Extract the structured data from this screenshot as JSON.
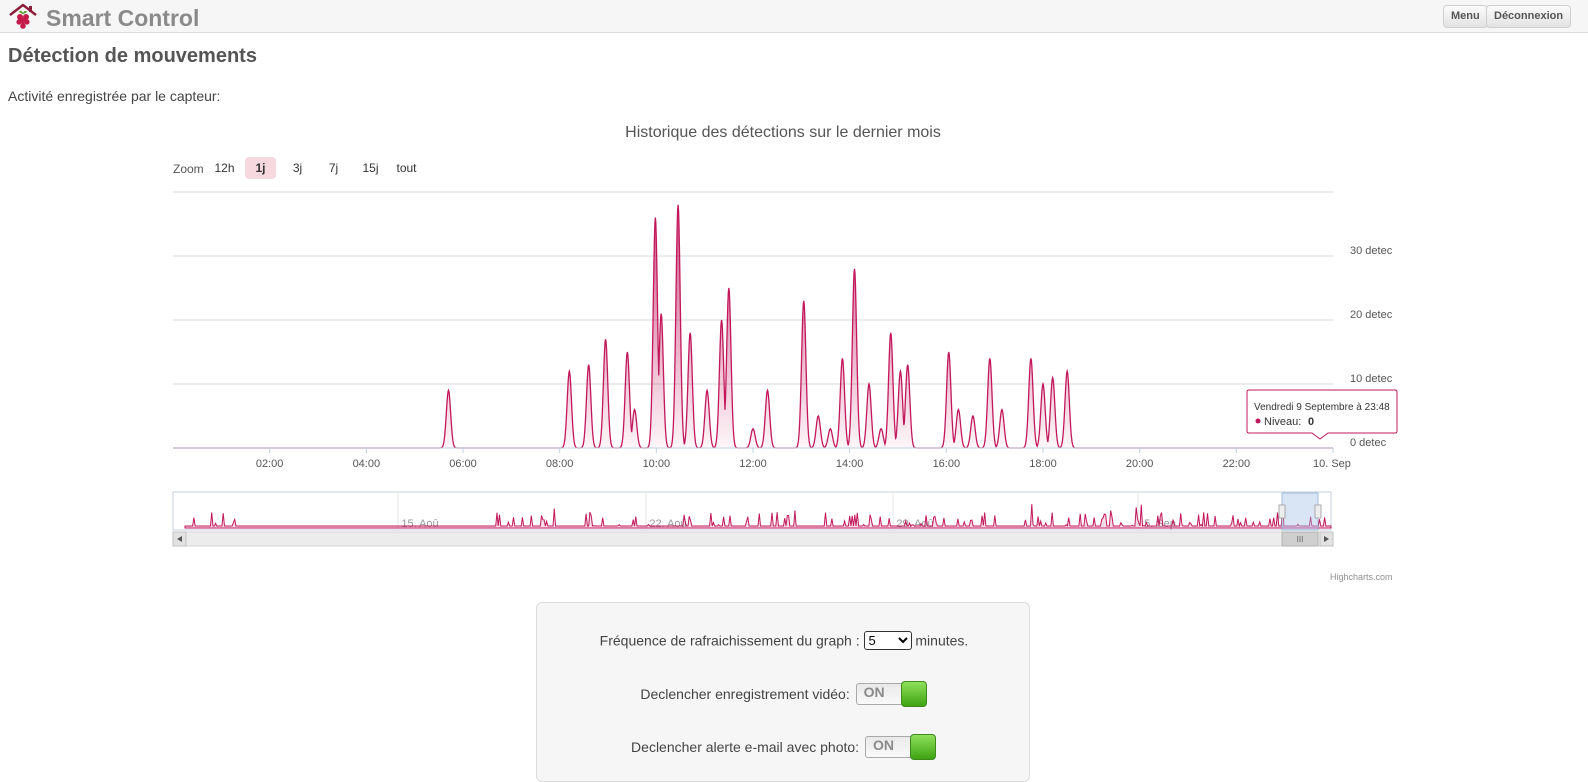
{
  "header": {
    "app_title": "Smart Control",
    "logo_icon": "raspberry-house-icon",
    "menu_label": "Menu",
    "logout_label": "Déconnexion"
  },
  "page": {
    "title": "Détection de mouvements",
    "intro": "Activité enregistrée par le capteur:"
  },
  "zoom": {
    "label": "Zoom",
    "options": [
      "12h",
      "1j",
      "3j",
      "7j",
      "15j",
      "tout"
    ],
    "selected": "1j"
  },
  "tooltip": {
    "date": "Vendredi 9 Septembre à 23:48",
    "series_label": "Niveau:",
    "value": "0"
  },
  "credits": "Highcharts.com",
  "colors": {
    "series": "#c2185b",
    "fill_top": "#c2185b",
    "grid": "#d8d8d8",
    "navigator_mask": "#dbe6f5"
  },
  "chart_data": {
    "type": "area",
    "title": "Historique des détections sur le dernier mois",
    "x_unit": "hour of day",
    "xlim": [
      0,
      24
    ],
    "ylim": [
      0,
      40
    ],
    "y_ticks": [
      0,
      10,
      20,
      30
    ],
    "y_tick_labels": [
      "0 detec",
      "10 detec",
      "20 detec",
      "30 detec"
    ],
    "x_ticks": [
      2,
      4,
      6,
      8,
      10,
      12,
      14,
      16,
      18,
      20,
      22,
      24
    ],
    "x_tick_labels": [
      "02:00",
      "04:00",
      "06:00",
      "08:00",
      "10:00",
      "12:00",
      "14:00",
      "16:00",
      "18:00",
      "20:00",
      "22:00",
      "10. Sep"
    ],
    "grid": true,
    "legend": "none",
    "series": [
      {
        "name": "Niveau",
        "points": [
          [
            5.7,
            9
          ],
          [
            8.2,
            12
          ],
          [
            8.6,
            13
          ],
          [
            8.95,
            17
          ],
          [
            9.4,
            15
          ],
          [
            9.55,
            6
          ],
          [
            9.98,
            36
          ],
          [
            10.1,
            21
          ],
          [
            10.45,
            38
          ],
          [
            10.7,
            18
          ],
          [
            11.05,
            9
          ],
          [
            11.35,
            20
          ],
          [
            11.5,
            25
          ],
          [
            12.0,
            3
          ],
          [
            12.3,
            9
          ],
          [
            13.05,
            23
          ],
          [
            13.35,
            5
          ],
          [
            13.6,
            3
          ],
          [
            13.85,
            14
          ],
          [
            14.1,
            28
          ],
          [
            14.4,
            10
          ],
          [
            14.65,
            3
          ],
          [
            14.85,
            18
          ],
          [
            15.05,
            12
          ],
          [
            15.2,
            13
          ],
          [
            16.05,
            15
          ],
          [
            16.25,
            6
          ],
          [
            16.55,
            5
          ],
          [
            16.9,
            14
          ],
          [
            17.15,
            6
          ],
          [
            17.75,
            14
          ],
          [
            18.0,
            10
          ],
          [
            18.2,
            11
          ],
          [
            18.5,
            12
          ]
        ]
      }
    ],
    "navigator": {
      "tick_labels": [
        "15. Aoû",
        "22. Aoû",
        "29. Aoû",
        "5. Sep"
      ],
      "scrollbar_grip": "III"
    }
  },
  "settings": {
    "refresh": {
      "label": "Fréquence de rafraichissement du graph :",
      "value": "5",
      "unit": "minutes."
    },
    "video": {
      "label": "Declencher enregistrement vidéo:",
      "state": "ON"
    },
    "email": {
      "label": "Declencher alerte e-mail avec photo:",
      "state": "ON"
    }
  }
}
